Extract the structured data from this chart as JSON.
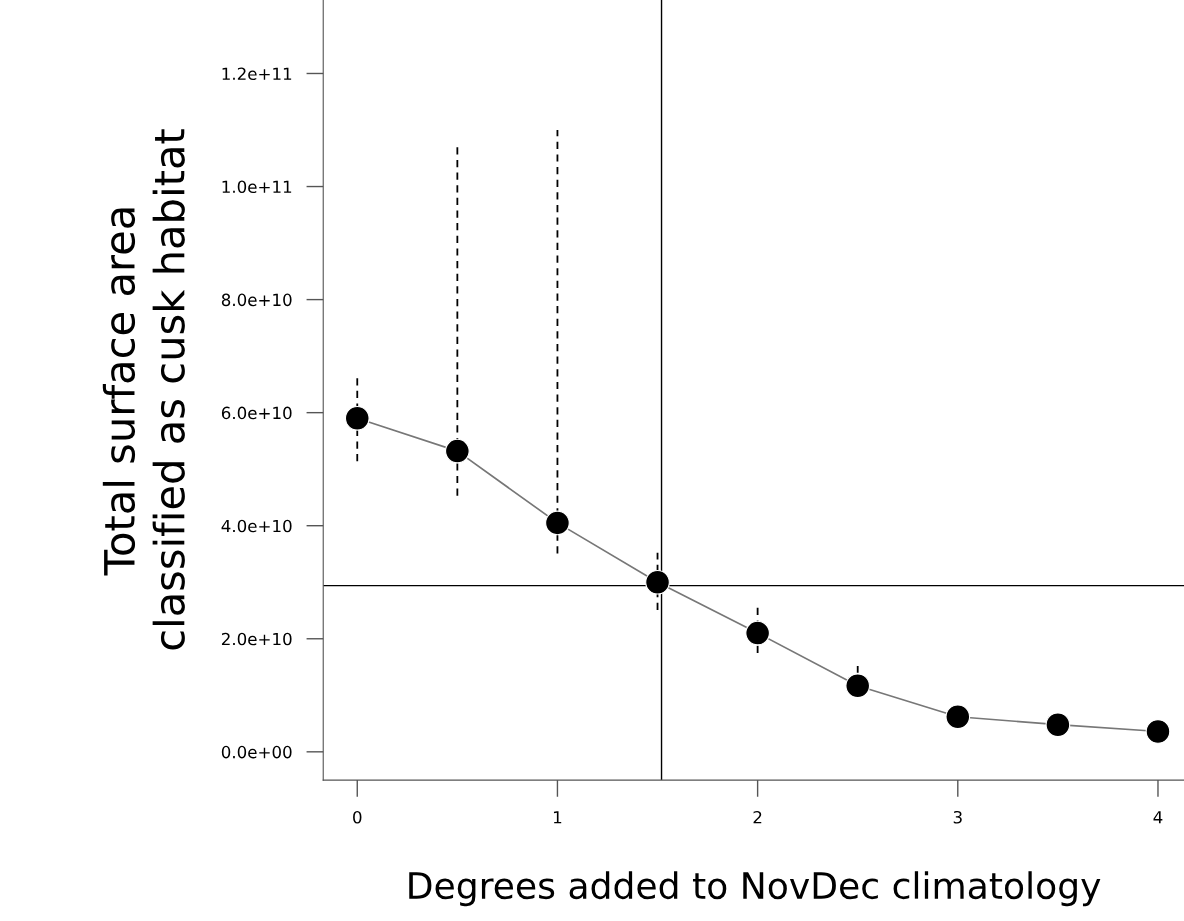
{
  "chart_data": {
    "type": "line",
    "xlabel": "Degrees added to NovDec climatology",
    "ylabel": "Total surface area\nclassified as cusk habitat",
    "x": [
      0,
      0.5,
      1,
      1.5,
      2,
      2.5,
      3,
      3.5,
      4
    ],
    "series": [
      {
        "color": "#000000",
        "values": [
          59000000000.0,
          53200000000.0,
          40500000000.0,
          30000000000.0,
          21000000000.0,
          11700000000.0,
          6200000000.0,
          4800000000.0,
          3600000000.0
        ],
        "errors": [
          [
            51400000000.0,
            66300000000.0
          ],
          [
            45300000000.0,
            107000000000.0
          ],
          [
            35100000000.0,
            110000000000.0
          ],
          [
            25100000000.0,
            35200000000.0
          ],
          [
            17500000000.0,
            25600000000.0
          ],
          [
            9500000000.0,
            15200000000.0
          ],
          null,
          null,
          null
        ]
      }
    ],
    "marker": "circle",
    "line_style": "solid",
    "grid": false,
    "xlim": [
      -0.17,
      4.13
    ],
    "ylim": [
      -5000000000.0,
      133000000000.0
    ],
    "xticks": [
      0,
      1,
      2,
      3,
      4
    ],
    "yticks": [
      {
        "value": 0,
        "label": "0.0e+00"
      },
      {
        "value": 20000000000.0,
        "label": "2.0e+10"
      },
      {
        "value": 40000000000.0,
        "label": "4.0e+10"
      },
      {
        "value": 60000000000.0,
        "label": "6.0e+10"
      },
      {
        "value": 80000000000.0,
        "label": "8.0e+10"
      },
      {
        "value": 100000000000.0,
        "label": "1.0e+11"
      },
      {
        "value": 120000000000.0,
        "label": "1.2e+11"
      }
    ],
    "ref_lines": [
      {
        "axis": "y",
        "value": 29400000000.0,
        "color": "#000000",
        "line_style": "solid"
      },
      {
        "axis": "x",
        "value": 1.52,
        "color": "#000000",
        "line_style": "solid"
      }
    ]
  }
}
